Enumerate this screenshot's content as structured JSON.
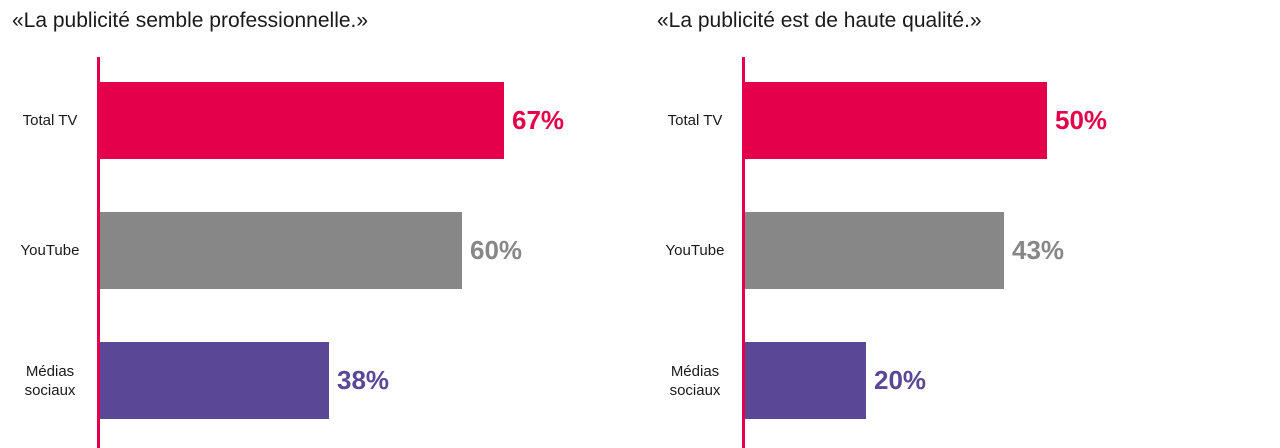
{
  "chart_data": [
    {
      "type": "bar",
      "orientation": "horizontal",
      "title": "«La publicité semble professionnelle.»",
      "categories": [
        "Total TV",
        "YouTube",
        "Médias sociaux"
      ],
      "category_lines": [
        [
          "Total TV"
        ],
        [
          "YouTube"
        ],
        [
          "Médias",
          "sociaux"
        ]
      ],
      "values": [
        67,
        60,
        38
      ],
      "value_labels": [
        "67%",
        "60%",
        "38%"
      ],
      "colors": [
        "#e4004b",
        "#878787",
        "#5a4795"
      ],
      "xlim": [
        0,
        100
      ],
      "grid": false
    },
    {
      "type": "bar",
      "orientation": "horizontal",
      "title": "«La publicité est de haute qualité.»",
      "categories": [
        "Total TV",
        "YouTube",
        "Médias sociaux"
      ],
      "category_lines": [
        [
          "Total TV"
        ],
        [
          "YouTube"
        ],
        [
          "Médias",
          "sociaux"
        ]
      ],
      "values": [
        50,
        43,
        20
      ],
      "value_labels": [
        "50%",
        "43%",
        "20%"
      ],
      "colors": [
        "#e4004b",
        "#878787",
        "#5a4795"
      ],
      "xlim": [
        0,
        100
      ],
      "grid": false
    }
  ]
}
